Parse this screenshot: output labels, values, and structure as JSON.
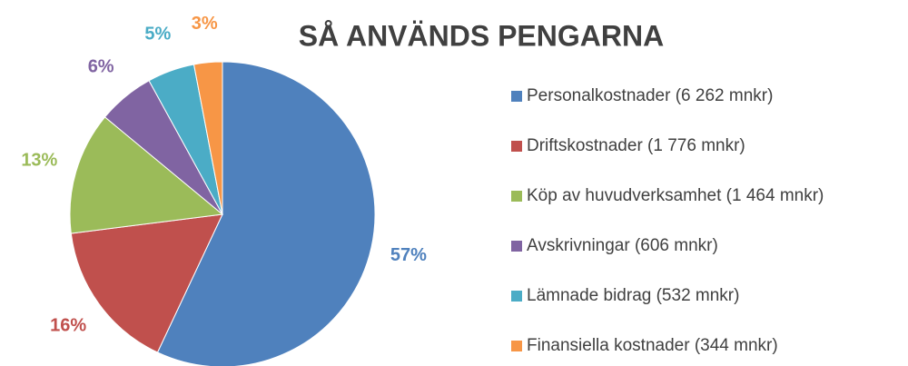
{
  "chart_data": {
    "type": "pie",
    "title": "SÅ ANVÄNDS PENGARNA",
    "categories": [
      "Personalkostnader (6 262 mnkr)",
      "Driftskostnader (1 776 mnkr)",
      "Köp av huvudverksamhet (1 464 mnkr)",
      "Avskrivningar (606 mnkr)",
      "Lämnade bidrag (532 mnkr)",
      "Finansiella kostnader (344 mnkr)"
    ],
    "values": [
      57,
      16,
      13,
      6,
      5,
      3
    ],
    "value_labels": [
      "57%",
      "16%",
      "13%",
      "6%",
      "5%",
      "3%"
    ],
    "colors": [
      "#4f81bd",
      "#c0504d",
      "#9bbb59",
      "#8064a2",
      "#4bacc6",
      "#f79646"
    ],
    "legend": "right"
  }
}
